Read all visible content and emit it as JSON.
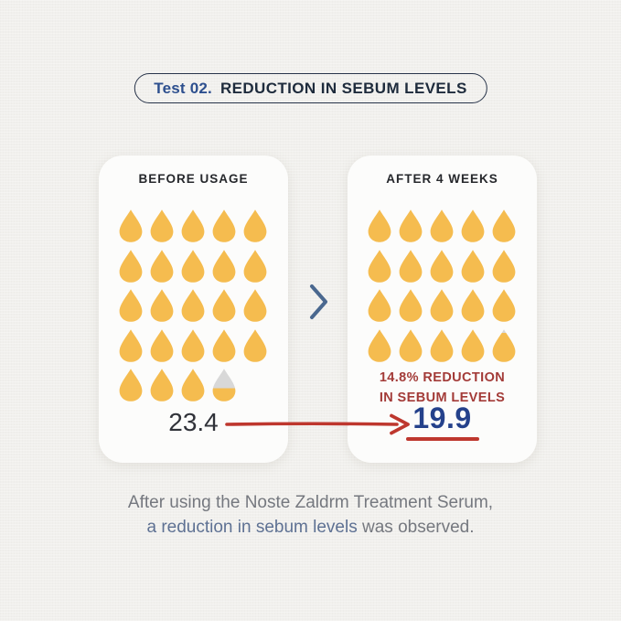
{
  "header": {
    "badge_prefix": "Test 02.",
    "badge_title": "REDUCTION IN SEBUM LEVELS"
  },
  "chart_data": {
    "type": "pictograph",
    "icon": "droplet",
    "icon_unit": 1,
    "icons_per_row": 5,
    "categories": [
      "BEFORE USAGE",
      "AFTER 4 WEEKS"
    ],
    "values": [
      23.4,
      19.9
    ],
    "value_labels": [
      "23.4",
      "19.9"
    ],
    "annotation": "14.8% REDUCTION IN SEBUM LEVELS",
    "reduction_percent": 14.8,
    "title": "Test 02. REDUCTION IN SEBUM LEVELS",
    "legend_position": "none",
    "grid": false
  },
  "cards": {
    "before": {
      "label": "BEFORE USAGE",
      "value": 23.4,
      "value_label": "23.4"
    },
    "after": {
      "label": "AFTER 4 WEEKS",
      "value": 19.9,
      "value_label": "19.9",
      "reduction_line1": "14.8% REDUCTION",
      "reduction_line2": "IN SEBUM LEVELS"
    }
  },
  "caption": {
    "line1": "After using the Noste Zaldrm Treatment Serum,",
    "line2_highlight": "a reduction in sebum levels",
    "line2_rest": " was observed."
  },
  "colors": {
    "droplet_fill": "#F5BC4F",
    "droplet_empty": "#D8D8D8",
    "accent_red": "#BE372E",
    "accent_red_dark": "#A33B38",
    "value_navy": "#24418B",
    "badge_blue": "#2D4F8E",
    "badge_text": "#1E2B3C",
    "badge_border": "#273349",
    "chevron_blue": "#4A688F",
    "caption_highlight": "#5E7193"
  }
}
